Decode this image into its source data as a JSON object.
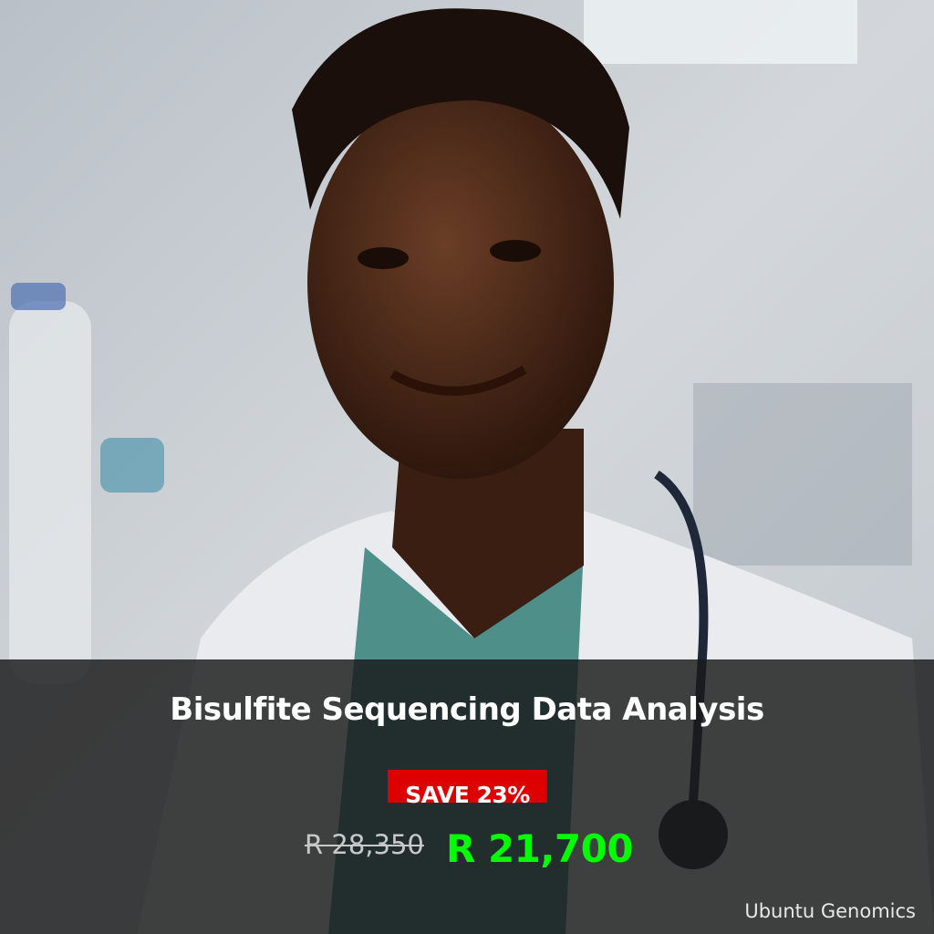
{
  "product": {
    "title": "Bisulfite Sequencing Data Analysis",
    "badge": "SAVE 23%",
    "original_price": "R 28,350",
    "sale_price": "R 21,700",
    "brand": "Ubuntu Genomics"
  },
  "colors": {
    "badge": "#dc0000",
    "sale_price": "#00ff00",
    "overlay": "#191919"
  },
  "image": {
    "subject": "smiling scientist in a white lab coat with a stethoscope in a laboratory"
  }
}
